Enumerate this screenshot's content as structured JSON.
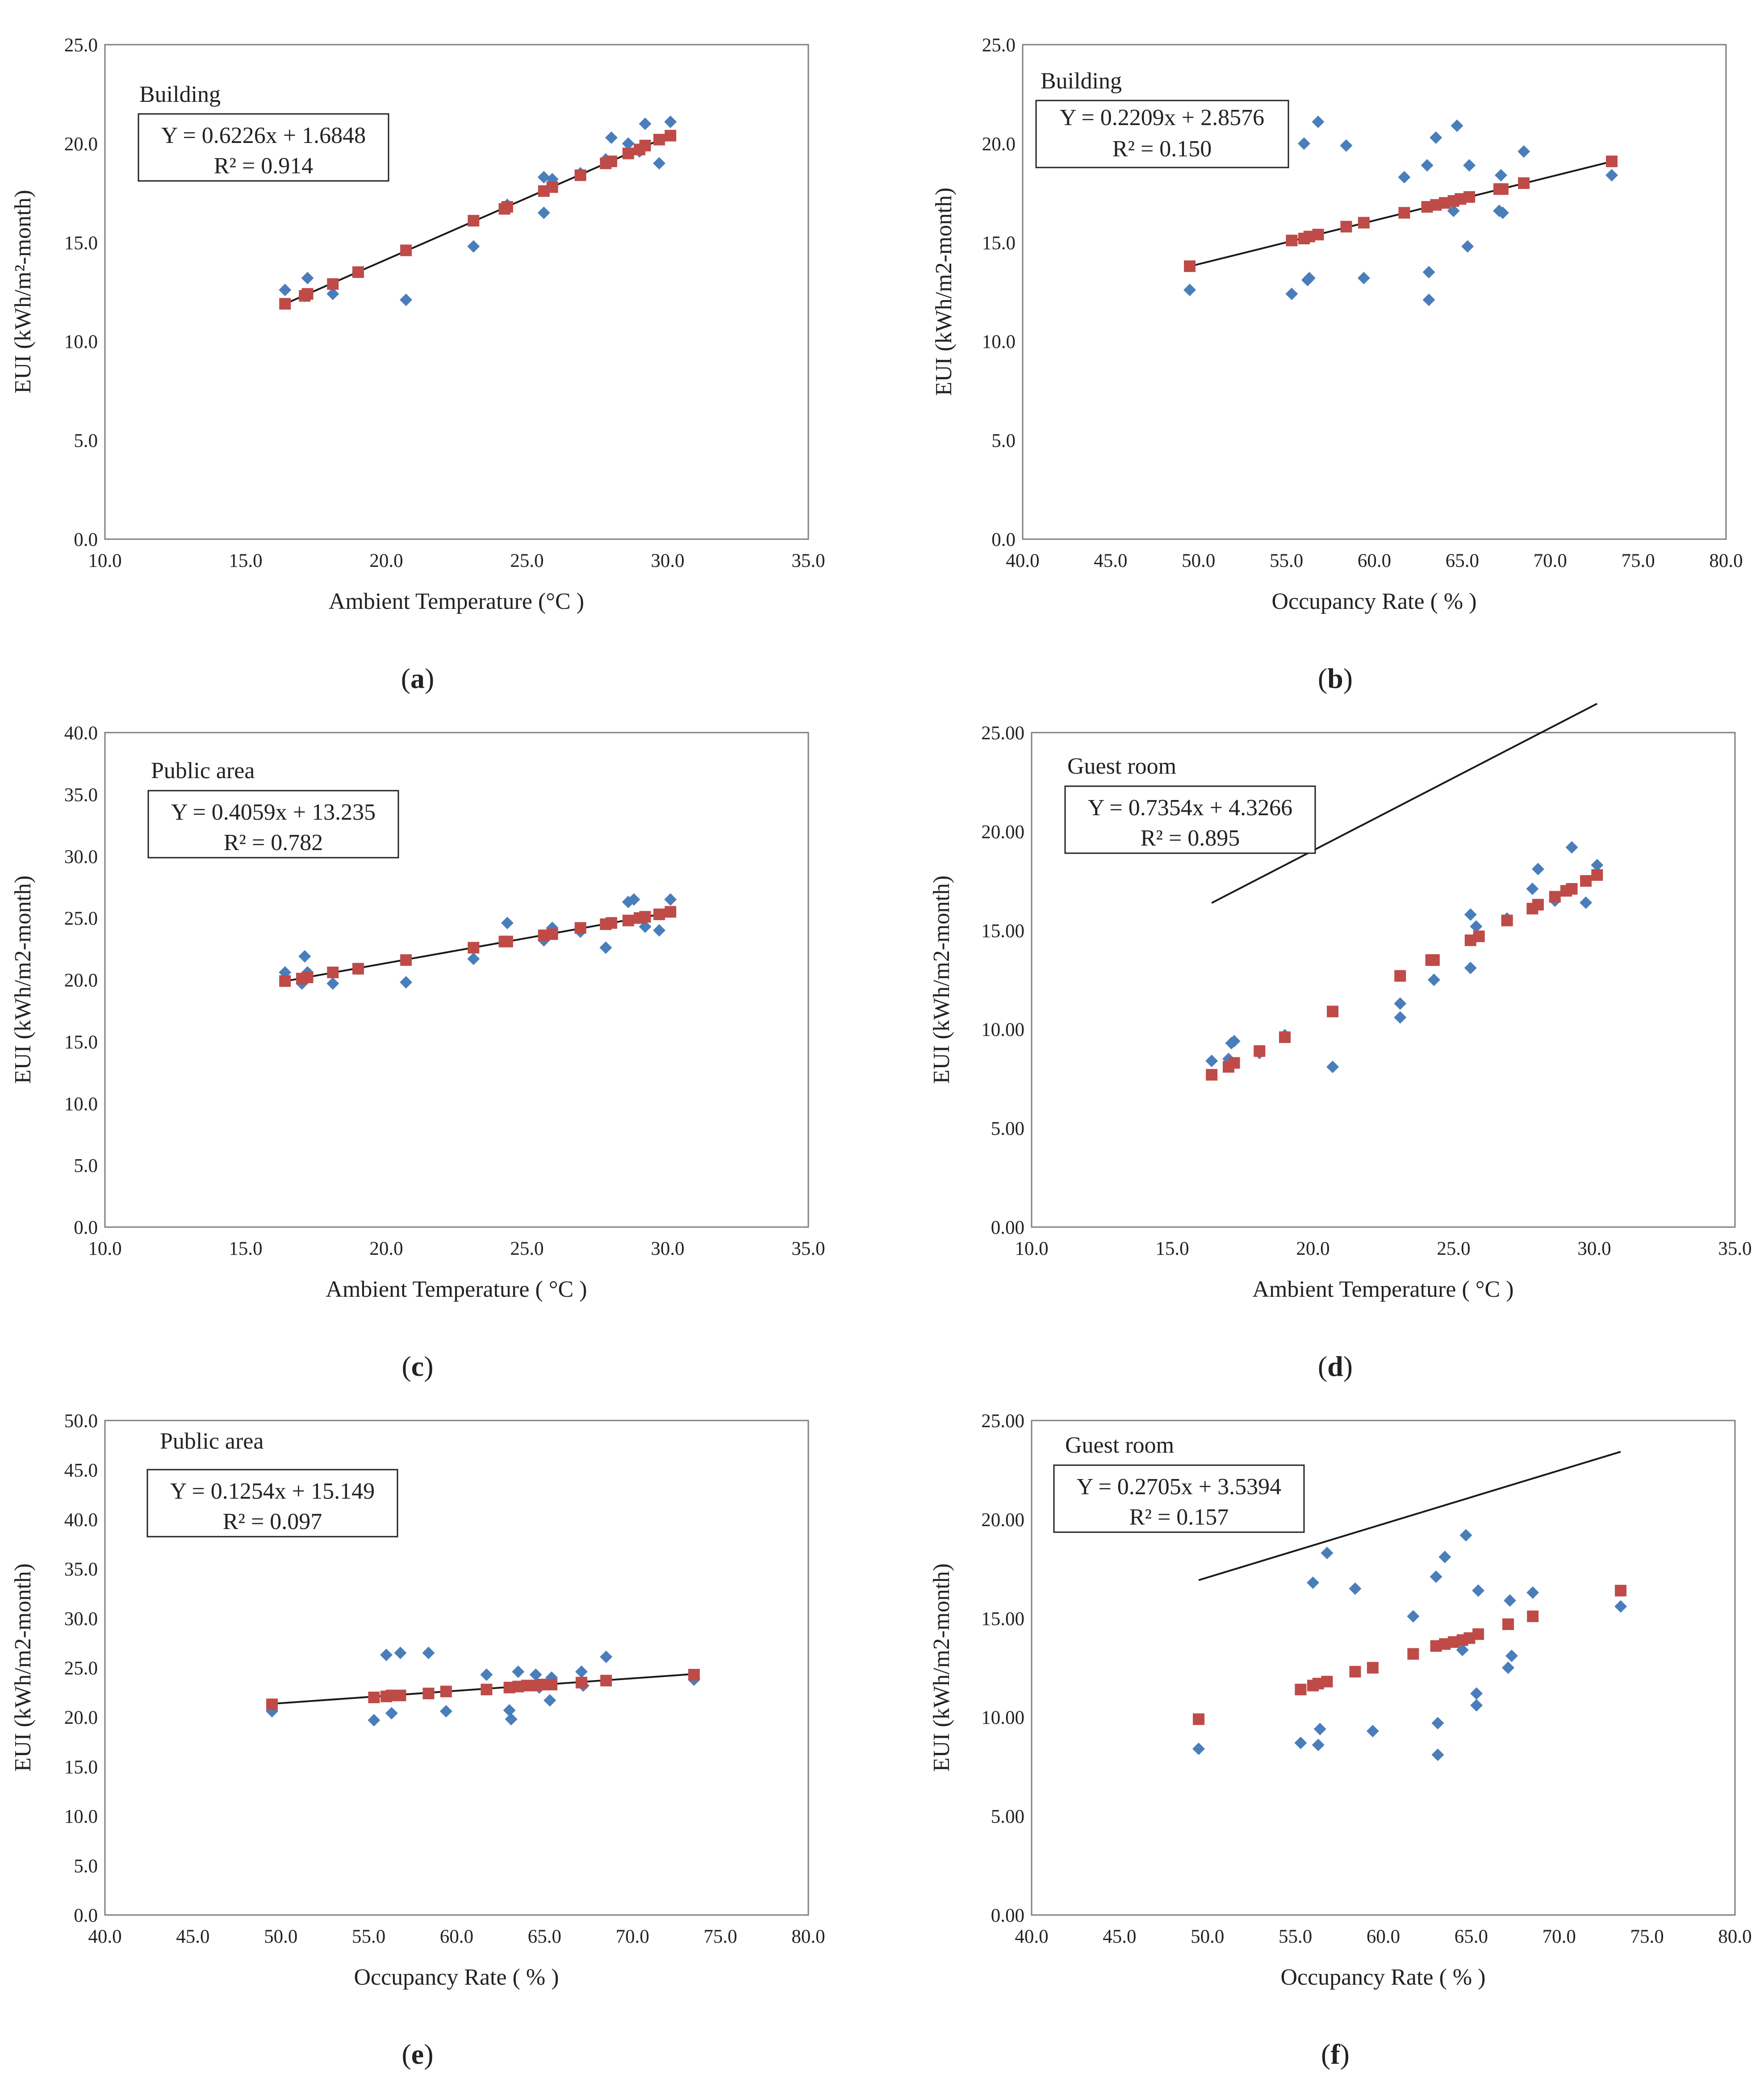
{
  "colors": {
    "observed": "#4a7ebb",
    "fitted": "#be4b48",
    "trendline": "#1a1a1a",
    "frame": "#7f7f7f"
  },
  "chart_data": [
    {
      "id": "a",
      "type": "scatter",
      "caption": "a",
      "annotation_title": "Building",
      "equation": "Y = 0.6226x + 1.6848",
      "r_squared": "R² = 0.914",
      "xlabel": "Ambient Temperature (°C )",
      "ylabel": "EUI (kWh/m²-month)",
      "xlim": [
        10,
        35
      ],
      "ylim": [
        0,
        25
      ],
      "xticks": [
        10,
        15,
        20,
        25,
        30,
        35
      ],
      "yticks": [
        0,
        5,
        10,
        15,
        20,
        25
      ],
      "decimals": 1,
      "slope": 0.6226,
      "intercept": 1.6848,
      "series": [
        {
          "name": "Observed",
          "marker": "diamond",
          "x": [
            16.4,
            17.1,
            17.2,
            18.1,
            19.0,
            20.7,
            23.1,
            24.3,
            25.6,
            25.6,
            25.9,
            26.9,
            27.8,
            28.0,
            28.6,
            29.0,
            29.2,
            29.7,
            30.1
          ],
          "y": [
            12.6,
            12.3,
            13.2,
            12.4,
            13.5,
            12.1,
            14.8,
            16.9,
            16.5,
            18.3,
            18.2,
            18.5,
            19.2,
            20.3,
            20.0,
            19.6,
            21.0,
            19.0,
            21.1
          ]
        },
        {
          "name": "Predicted",
          "marker": "square",
          "x": [
            16.4,
            17.1,
            17.2,
            18.1,
            19.0,
            20.7,
            23.1,
            24.2,
            24.3,
            25.6,
            25.9,
            26.9,
            27.8,
            28.0,
            28.6,
            29.0,
            29.2,
            29.7,
            30.1
          ],
          "y": [
            11.9,
            12.3,
            12.4,
            12.9,
            13.5,
            14.6,
            16.1,
            16.7,
            16.8,
            17.6,
            17.8,
            18.4,
            19.0,
            19.1,
            19.5,
            19.7,
            19.9,
            20.2,
            20.4
          ]
        }
      ]
    },
    {
      "id": "b",
      "type": "scatter",
      "caption": "b",
      "annotation_title": "Building",
      "equation": "Y = 0.2209x + 2.8576",
      "r_squared": "R² = 0.150",
      "xlabel": "Occupancy Rate ( % )",
      "ylabel": "EUI (kWh/m2-month)",
      "xlim": [
        40,
        80
      ],
      "ylim": [
        0,
        25
      ],
      "xticks": [
        40,
        45,
        50,
        55,
        60,
        65,
        70,
        75,
        80
      ],
      "yticks": [
        0,
        5,
        10,
        15,
        20,
        25
      ],
      "decimals": 1,
      "slope": 0.2209,
      "intercept": 2.8576,
      "series": [
        {
          "name": "Observed",
          "marker": "diamond",
          "x": [
            49.5,
            55.3,
            56.0,
            56.2,
            56.3,
            56.8,
            58.4,
            59.4,
            61.7,
            63.0,
            63.1,
            63.1,
            63.5,
            64.5,
            64.7,
            65.3,
            65.4,
            67.1,
            67.2,
            67.3,
            68.5,
            73.5
          ],
          "y": [
            12.6,
            12.4,
            20.0,
            13.1,
            13.2,
            21.1,
            19.9,
            13.2,
            18.3,
            18.9,
            12.1,
            13.5,
            20.3,
            16.6,
            20.9,
            14.8,
            18.9,
            16.6,
            18.4,
            16.5,
            19.6,
            18.4
          ]
        },
        {
          "name": "Predicted",
          "marker": "square",
          "x": [
            49.5,
            55.3,
            56.0,
            56.3,
            56.8,
            58.4,
            59.4,
            61.7,
            63.0,
            63.5,
            64.0,
            64.5,
            64.9,
            65.4,
            67.1,
            67.3,
            68.5,
            73.5
          ],
          "y": [
            13.8,
            15.1,
            15.2,
            15.3,
            15.4,
            15.8,
            16.0,
            16.5,
            16.8,
            16.9,
            17.0,
            17.1,
            17.2,
            17.3,
            17.7,
            17.7,
            18.0,
            19.1
          ]
        }
      ]
    },
    {
      "id": "c",
      "type": "scatter",
      "caption": "c",
      "annotation_title": "Public area",
      "equation": "Y = 0.4059x + 13.235",
      "r_squared": "R² = 0.782",
      "xlabel": "Ambient Temperature ( °C )",
      "ylabel": "EUI (kWh/m2-month)",
      "xlim": [
        10,
        35
      ],
      "ylim": [
        0,
        40
      ],
      "xticks": [
        10,
        15,
        20,
        25,
        30,
        35
      ],
      "yticks": [
        0,
        5,
        10,
        15,
        20,
        25,
        30,
        35,
        40
      ],
      "decimals": 1,
      "slope": 0.4059,
      "intercept": 13.235,
      "series": [
        {
          "name": "Observed",
          "marker": "diamond",
          "x": [
            16.4,
            17.0,
            17.1,
            17.2,
            18.1,
            19.0,
            20.7,
            23.1,
            24.3,
            25.6,
            25.9,
            26.9,
            27.8,
            28.0,
            28.6,
            28.8,
            29.2,
            29.7,
            30.1
          ],
          "y": [
            20.6,
            19.7,
            21.9,
            20.6,
            19.7,
            20.9,
            19.8,
            21.7,
            24.6,
            23.2,
            24.2,
            23.9,
            22.6,
            24.6,
            26.3,
            26.5,
            24.3,
            24.0,
            26.5
          ]
        },
        {
          "name": "Predicted",
          "marker": "square",
          "x": [
            16.4,
            17.0,
            17.2,
            18.1,
            19.0,
            20.7,
            23.1,
            24.2,
            24.3,
            25.6,
            25.9,
            26.9,
            27.8,
            28.0,
            28.6,
            29.0,
            29.2,
            29.7,
            30.1
          ],
          "y": [
            19.9,
            20.1,
            20.2,
            20.6,
            20.9,
            21.6,
            22.6,
            23.1,
            23.1,
            23.6,
            23.7,
            24.2,
            24.5,
            24.6,
            24.8,
            25.0,
            25.1,
            25.3,
            25.5
          ]
        }
      ]
    },
    {
      "id": "d",
      "type": "scatter",
      "caption": "d",
      "annotation_title": "Guest room",
      "equation": "Y = 0.7354x + 4.3266",
      "r_squared": "R² = 0.895",
      "xlabel": "Ambient Temperature ( °C )",
      "ylabel": "EUI (kWh/m2-month)",
      "xlim": [
        10,
        35
      ],
      "ylim": [
        0,
        25
      ],
      "xticks": [
        10,
        15,
        20,
        25,
        30,
        35
      ],
      "yticks": [
        0,
        5,
        10,
        15,
        20,
        25
      ],
      "decimals": 2,
      "slope": 0.7354,
      "intercept": 4.3266,
      "series": [
        {
          "name": "Observed",
          "marker": "diamond",
          "x": [
            16.4,
            17.0,
            17.1,
            17.2,
            18.1,
            19.0,
            20.7,
            23.1,
            23.1,
            24.3,
            25.6,
            25.6,
            25.8,
            26.9,
            27.8,
            28.0,
            28.6,
            29.2,
            29.7,
            30.1
          ],
          "y": [
            8.4,
            8.5,
            9.3,
            9.4,
            8.8,
            9.7,
            8.1,
            10.6,
            11.3,
            12.5,
            13.1,
            15.8,
            15.2,
            15.6,
            17.1,
            18.1,
            16.5,
            19.2,
            16.4,
            18.3
          ]
        },
        {
          "name": "Predicted",
          "marker": "square",
          "x": [
            16.4,
            17.0,
            17.2,
            18.1,
            19.0,
            20.7,
            23.1,
            24.2,
            24.3,
            25.6,
            25.9,
            26.9,
            27.8,
            28.0,
            28.6,
            29.0,
            29.2,
            29.7,
            30.1
          ],
          "y": [
            7.7,
            8.1,
            8.3,
            8.9,
            9.6,
            10.9,
            12.7,
            13.5,
            13.5,
            14.5,
            14.7,
            15.5,
            16.1,
            16.3,
            16.7,
            17.0,
            17.1,
            17.5,
            17.8
          ]
        }
      ]
    },
    {
      "id": "e",
      "type": "scatter",
      "caption": "e",
      "annotation_title": "Public area",
      "equation": "Y = 0.1254x + 15.149",
      "r_squared": "R² = 0.097",
      "xlabel": "Occupancy Rate ( % )",
      "ylabel": "EUI (kWh/m2-month)",
      "xlim": [
        40,
        80
      ],
      "ylim": [
        0,
        50
      ],
      "xticks": [
        40,
        45,
        50,
        55,
        60,
        65,
        70,
        75,
        80
      ],
      "yticks": [
        0,
        5,
        10,
        15,
        20,
        25,
        30,
        35,
        40,
        45,
        50
      ],
      "decimals": 1,
      "slope": 0.1254,
      "intercept": 15.149,
      "series": [
        {
          "name": "Observed",
          "marker": "diamond",
          "x": [
            49.5,
            55.3,
            56.0,
            56.3,
            56.8,
            58.4,
            59.4,
            61.7,
            63.0,
            63.1,
            63.5,
            64.5,
            64.7,
            65.3,
            65.4,
            67.1,
            67.2,
            68.5,
            73.5
          ],
          "y": [
            20.6,
            19.7,
            26.3,
            20.4,
            26.5,
            26.5,
            20.6,
            24.3,
            20.7,
            19.8,
            24.6,
            24.3,
            23.0,
            21.7,
            24.0,
            24.6,
            23.2,
            26.1,
            23.8
          ]
        },
        {
          "name": "Predicted",
          "marker": "square",
          "x": [
            49.5,
            55.3,
            56.0,
            56.3,
            56.8,
            58.4,
            59.4,
            61.7,
            63.0,
            63.5,
            64.0,
            64.5,
            64.9,
            65.4,
            67.1,
            68.5,
            73.5
          ],
          "y": [
            21.3,
            22.0,
            22.1,
            22.2,
            22.2,
            22.4,
            22.6,
            22.8,
            23.0,
            23.1,
            23.2,
            23.2,
            23.3,
            23.3,
            23.5,
            23.7,
            24.3
          ]
        }
      ]
    },
    {
      "id": "f",
      "type": "scatter",
      "caption": "f",
      "annotation_title": "Guest room",
      "equation": "Y = 0.2705x + 3.5394",
      "r_squared": "R² = 0.157",
      "xlabel": "Occupancy Rate ( % )",
      "ylabel": "EUI (kWh/m2-month)",
      "xlim": [
        40,
        80
      ],
      "ylim": [
        0,
        25
      ],
      "xticks": [
        40,
        45,
        50,
        55,
        60,
        65,
        70,
        75,
        80
      ],
      "yticks": [
        0,
        5,
        10,
        15,
        20,
        25
      ],
      "decimals": 2,
      "slope": 0.2705,
      "intercept": 3.5394,
      "series": [
        {
          "name": "Observed",
          "marker": "diamond",
          "x": [
            49.5,
            55.3,
            56.0,
            56.3,
            56.4,
            56.8,
            58.4,
            59.4,
            61.7,
            63.0,
            63.1,
            63.1,
            63.5,
            64.5,
            64.7,
            65.3,
            65.3,
            65.4,
            67.1,
            67.2,
            67.3,
            68.5,
            73.5
          ],
          "y": [
            8.4,
            8.7,
            16.8,
            8.6,
            9.4,
            18.3,
            16.5,
            9.3,
            15.1,
            17.1,
            9.7,
            8.1,
            18.1,
            13.4,
            19.2,
            11.2,
            10.6,
            16.4,
            12.5,
            15.9,
            13.1,
            16.3,
            15.6
          ]
        },
        {
          "name": "Predicted",
          "marker": "square",
          "x": [
            49.5,
            55.3,
            56.0,
            56.3,
            56.8,
            58.4,
            59.4,
            61.7,
            63.0,
            63.5,
            64.0,
            64.5,
            64.9,
            65.4,
            67.1,
            68.5,
            73.5
          ],
          "y": [
            9.9,
            11.4,
            11.6,
            11.7,
            11.8,
            12.3,
            12.5,
            13.2,
            13.6,
            13.7,
            13.8,
            13.9,
            14.0,
            14.2,
            14.7,
            15.1,
            16.4
          ]
        }
      ]
    }
  ]
}
